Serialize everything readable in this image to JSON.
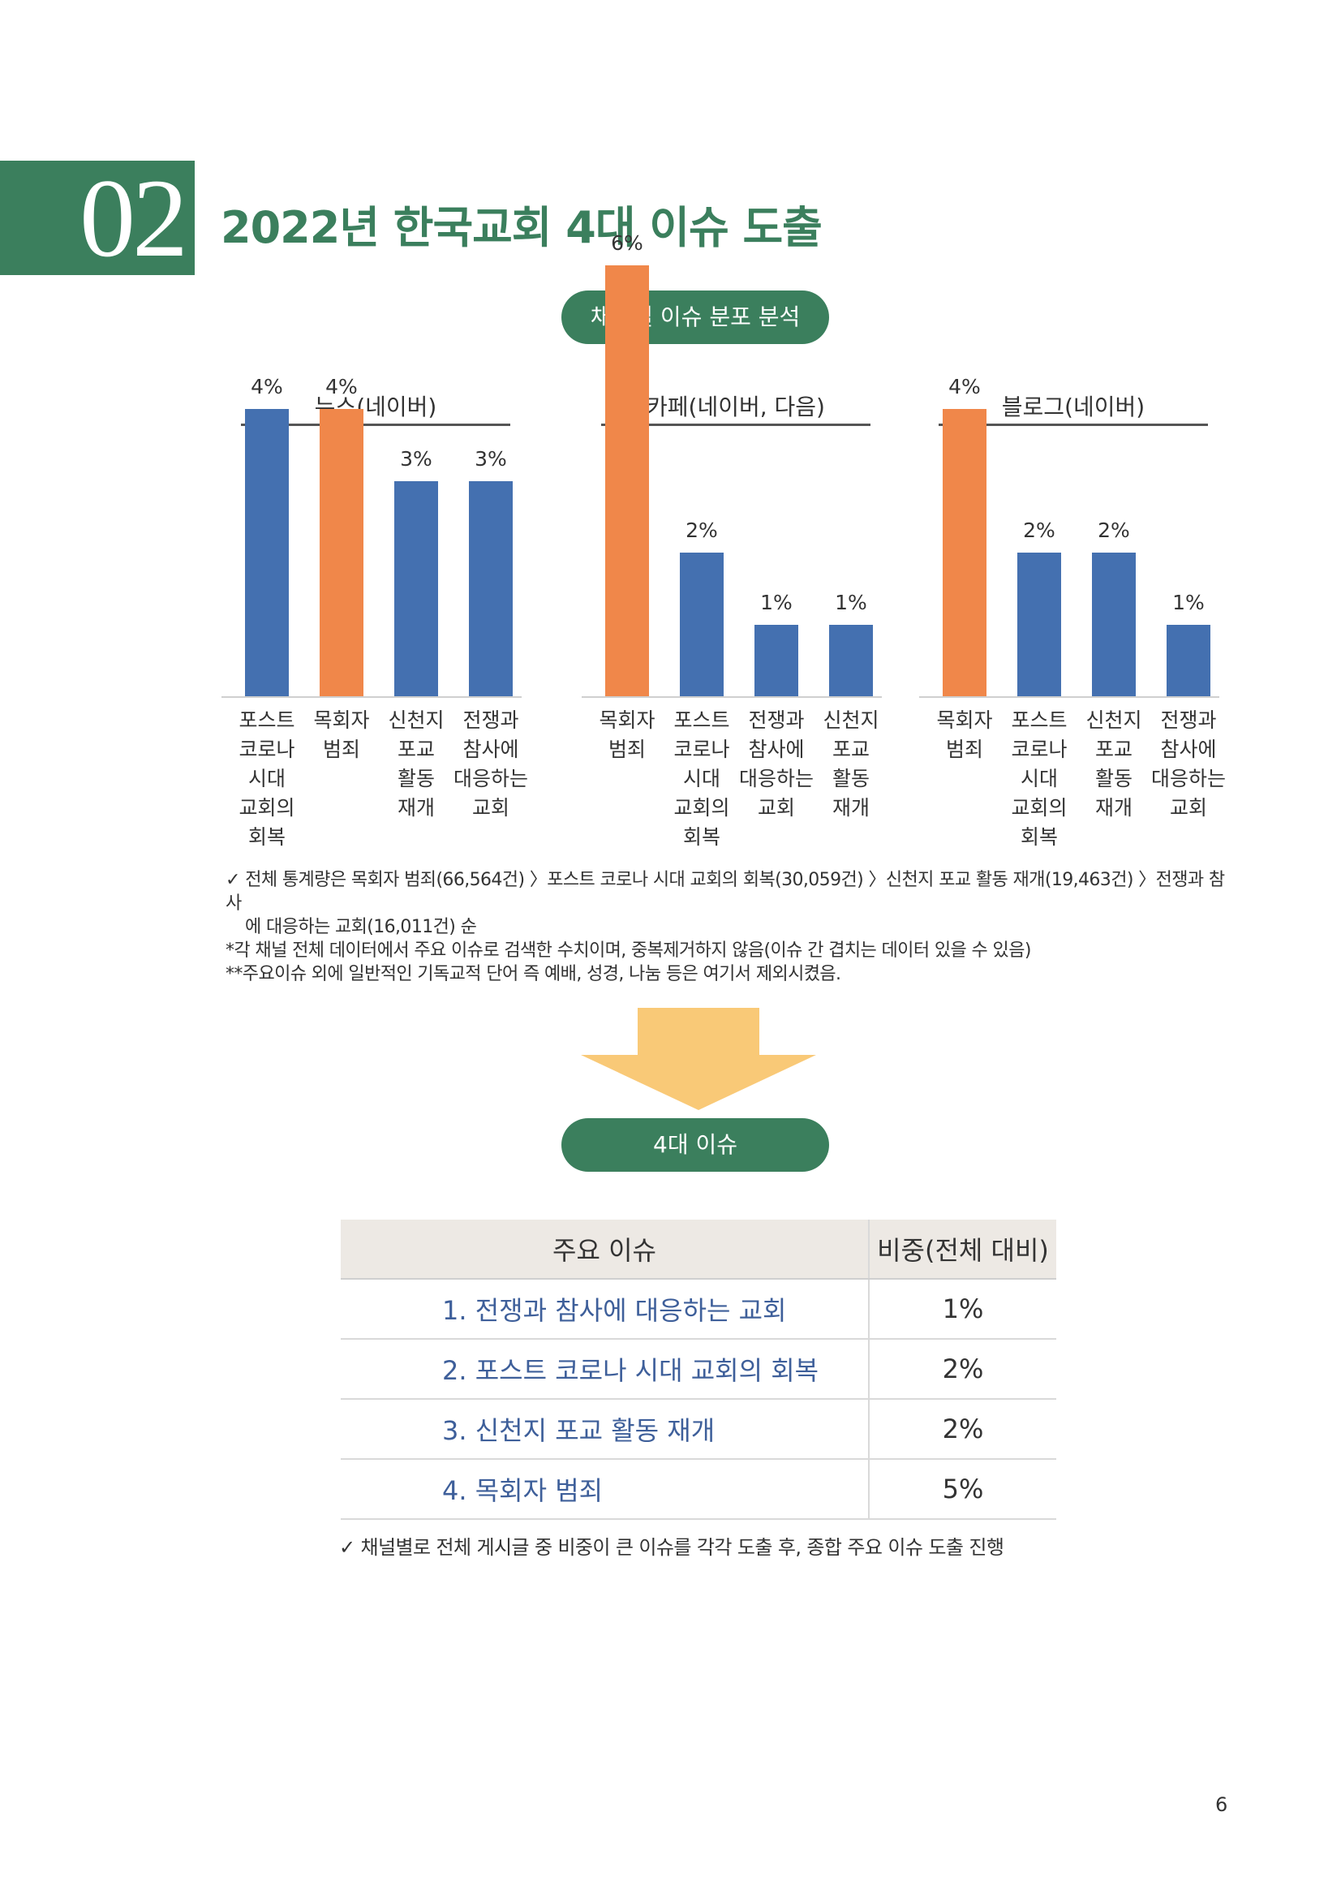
{
  "header": {
    "section_number": "02",
    "title": "2022년 한국교회 4대 이슈 도출"
  },
  "pill_channel": "채널별 이슈 분포 분석",
  "chart_data": [
    {
      "type": "bar",
      "title": "뉴스(네이버)",
      "categories": [
        "포스트\n코로나\n시대\n교회의\n회복",
        "목회자\n범죄",
        "신천지\n포교\n활동\n재개",
        "전쟁과\n참사에\n대응하는\n교회"
      ],
      "values": [
        4,
        4,
        3,
        3
      ],
      "labels": [
        "4%",
        "4%",
        "3%",
        "3%"
      ],
      "colors": [
        "#4470b0",
        "#f0874a",
        "#4470b0",
        "#4470b0"
      ]
    },
    {
      "type": "bar",
      "title": "카페(네이버, 다음)",
      "categories": [
        "목회자\n범죄",
        "포스트\n코로나\n시대\n교회의\n회복",
        "전쟁과\n참사에\n대응하는\n교회",
        "신천지\n포교\n활동\n재개"
      ],
      "values": [
        6,
        2,
        1,
        1
      ],
      "labels": [
        "6%",
        "2%",
        "1%",
        "1%"
      ],
      "colors": [
        "#f0874a",
        "#4470b0",
        "#4470b0",
        "#4470b0"
      ]
    },
    {
      "type": "bar",
      "title": "블로그(네이버)",
      "categories": [
        "목회자\n범죄",
        "포스트\n코로나\n시대\n교회의\n회복",
        "신천지\n포교\n활동\n재개",
        "전쟁과\n참사에\n대응하는\n교회"
      ],
      "values": [
        4,
        2,
        2,
        1
      ],
      "labels": [
        "4%",
        "2%",
        "2%",
        "1%"
      ],
      "colors": [
        "#f0874a",
        "#4470b0",
        "#4470b0",
        "#4470b0"
      ]
    }
  ],
  "notes": {
    "line1": "✓ 전체 통계량은 목회자 범죄(66,564건) 〉포스트 코로나 시대 교회의 회복(30,059건) 〉신천지 포교 활동 재개(19,463건) 〉전쟁과 참사",
    "line2": "에 대응하는 교회(16,011건) 순",
    "line3": "*각 채널 전체 데이터에서 주요 이슈로 검색한 수치이며, 중복제거하지 않음(이슈 간 겹치는 데이터 있을 수 있음)",
    "line4": "**주요이슈 외에 일반적인 기독교적 단어 즉 예배, 성경, 나눔 등은 여기서 제외시켰음."
  },
  "pill_issues": "4대 이슈",
  "table": {
    "header_issue": "주요 이슈",
    "header_share": "비중(전체 대비)",
    "rows": [
      {
        "issue": "1. 전쟁과 참사에 대응하는 교회",
        "share": "1%"
      },
      {
        "issue": "2. 포스트 코로나 시대 교회의 회복",
        "share": "2%"
      },
      {
        "issue": "3. 신천지 포교 활동 재개",
        "share": "2%"
      },
      {
        "issue": "4. 목회자 범죄",
        "share": "5%"
      }
    ]
  },
  "footer_note": "✓ 채널별로 전체 게시글 중 비중이 큰 이슈를 각각 도출 후, 종합 주요 이슈 도출 진행",
  "page_number": "6"
}
